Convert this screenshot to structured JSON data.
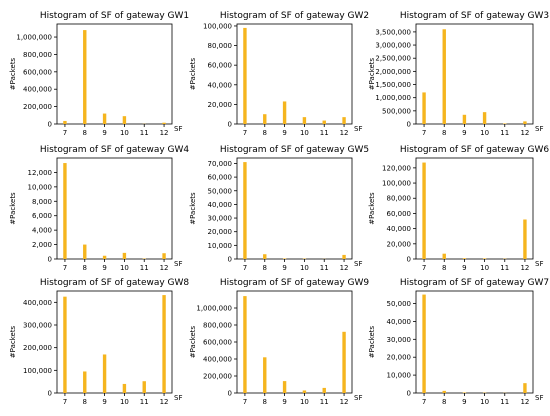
{
  "style": {
    "bar_color": "#f5b51e"
  },
  "chart_data": [
    {
      "type": "bar",
      "title": "Histogram of SF of gateway GW1",
      "xlabel": "SF",
      "ylabel": "#Packets",
      "categories": [
        7,
        8,
        9,
        10,
        11,
        12
      ],
      "values": [
        35000,
        1080000,
        120000,
        90000,
        2000,
        15000
      ],
      "ylim": [
        0,
        1150000
      ],
      "yticks": [
        0,
        200000,
        400000,
        600000,
        800000,
        1000000
      ],
      "ytick_labels": [
        "0",
        "200,000",
        "400,000",
        "600,000",
        "800,000",
        "1,000,000"
      ],
      "xtick_labels": [
        "7",
        "8",
        "9",
        "10",
        "11",
        "12"
      ]
    },
    {
      "type": "bar",
      "title": "Histogram of SF of gateway GW2",
      "xlabel": "SF",
      "ylabel": "#Packets",
      "categories": [
        7,
        8,
        9,
        10,
        11,
        12
      ],
      "values": [
        98000,
        10000,
        23000,
        7000,
        3500,
        7000
      ],
      "ylim": [
        0,
        102000
      ],
      "yticks": [
        0,
        20000,
        40000,
        60000,
        80000,
        100000
      ],
      "ytick_labels": [
        "0",
        "20,000",
        "40,000",
        "60,000",
        "80,000",
        "100,000"
      ],
      "xtick_labels": [
        "7",
        "8",
        "9",
        "10",
        "11",
        "12"
      ]
    },
    {
      "type": "bar",
      "title": "Histogram of SF of gateway GW3",
      "xlabel": "SF",
      "ylabel": "#Packets",
      "categories": [
        7,
        8,
        9,
        10,
        11,
        12
      ],
      "values": [
        1200000,
        3600000,
        350000,
        450000,
        20000,
        100000
      ],
      "ylim": [
        0,
        3800000
      ],
      "yticks": [
        0,
        500000,
        1000000,
        1500000,
        2000000,
        2500000,
        3000000,
        3500000
      ],
      "ytick_labels": [
        "0",
        "500,000",
        "1,000,000",
        "1,500,000",
        "2,000,000",
        "2,500,000",
        "3,000,000",
        "3,500,000"
      ],
      "xtick_labels": [
        "7",
        "8",
        "9",
        "10",
        "11",
        "12"
      ]
    },
    {
      "type": "bar",
      "title": "Histogram of SF of gateway GW4",
      "xlabel": "SF",
      "ylabel": "#Packets",
      "categories": [
        7,
        8,
        9,
        10,
        11,
        12
      ],
      "values": [
        13300,
        2000,
        450,
        850,
        60,
        800
      ],
      "ylim": [
        0,
        14000
      ],
      "yticks": [
        0,
        2000,
        4000,
        6000,
        8000,
        10000,
        12000
      ],
      "ytick_labels": [
        "0",
        "2,000",
        "4,000",
        "6,000",
        "8,000",
        "10,000",
        "12,000"
      ],
      "xtick_labels": [
        "7",
        "8",
        "9",
        "10",
        "11",
        "12"
      ]
    },
    {
      "type": "bar",
      "title": "Histogram of SF of gateway GW5",
      "xlabel": "SF",
      "ylabel": "#Packets",
      "categories": [
        7,
        8,
        9,
        10,
        11,
        12
      ],
      "values": [
        71000,
        3500,
        400,
        300,
        100,
        3000
      ],
      "ylim": [
        0,
        74000
      ],
      "yticks": [
        0,
        10000,
        20000,
        30000,
        40000,
        50000,
        60000,
        70000
      ],
      "ytick_labels": [
        "0",
        "10,000",
        "20,000",
        "30,000",
        "40,000",
        "50,000",
        "60,000",
        "70,000"
      ],
      "xtick_labels": [
        "7",
        "8",
        "9",
        "10",
        "11",
        "12"
      ]
    },
    {
      "type": "bar",
      "title": "Histogram of SF of gateway GW6",
      "xlabel": "SF",
      "ylabel": "#Packets",
      "categories": [
        7,
        8,
        9,
        10,
        11,
        12
      ],
      "values": [
        127000,
        7000,
        1000,
        800,
        400,
        52000
      ],
      "ylim": [
        0,
        133000
      ],
      "yticks": [
        0,
        20000,
        40000,
        60000,
        80000,
        100000,
        120000
      ],
      "ytick_labels": [
        "0",
        "20,000",
        "40,000",
        "60,000",
        "80,000",
        "100,000",
        "120,000"
      ],
      "xtick_labels": [
        "7",
        "8",
        "9",
        "10",
        "11",
        "12"
      ]
    },
    {
      "type": "bar",
      "title": "Histogram of SF of gateway GW8",
      "xlabel": "SF",
      "ylabel": "#Packets",
      "categories": [
        7,
        8,
        9,
        10,
        11,
        12
      ],
      "values": [
        425000,
        95000,
        170000,
        40000,
        52000,
        432000
      ],
      "ylim": [
        0,
        450000
      ],
      "yticks": [
        0,
        100000,
        200000,
        300000,
        400000
      ],
      "ytick_labels": [
        "0",
        "100,000",
        "200,000",
        "300,000",
        "400,000"
      ],
      "xtick_labels": [
        "7",
        "8",
        "9",
        "10",
        "11",
        "12"
      ]
    },
    {
      "type": "bar",
      "title": "Histogram of SF of gateway GW9",
      "xlabel": "SF",
      "ylabel": "#Packets",
      "categories": [
        7,
        8,
        9,
        10,
        11,
        12
      ],
      "values": [
        1140000,
        420000,
        140000,
        30000,
        60000,
        720000
      ],
      "ylim": [
        0,
        1200000
      ],
      "yticks": [
        0,
        200000,
        400000,
        600000,
        800000,
        1000000
      ],
      "ytick_labels": [
        "0",
        "200,000",
        "400,000",
        "600,000",
        "800,000",
        "1,000,000"
      ],
      "xtick_labels": [
        "7",
        "8",
        "9",
        "10",
        "11",
        "12"
      ]
    },
    {
      "type": "bar",
      "title": "Histogram of SF of gateway GW7",
      "xlabel": "SF",
      "ylabel": "#Packets",
      "categories": [
        7,
        8,
        9,
        10,
        11,
        12
      ],
      "values": [
        55000,
        1200,
        300,
        200,
        100,
        5500
      ],
      "ylim": [
        0,
        57000
      ],
      "yticks": [
        0,
        10000,
        20000,
        30000,
        40000,
        50000
      ],
      "ytick_labels": [
        "0",
        "10,000",
        "20,000",
        "30,000",
        "40,000",
        "50,000"
      ],
      "xtick_labels": [
        "7",
        "8",
        "9",
        "10",
        "11",
        "12"
      ]
    }
  ]
}
